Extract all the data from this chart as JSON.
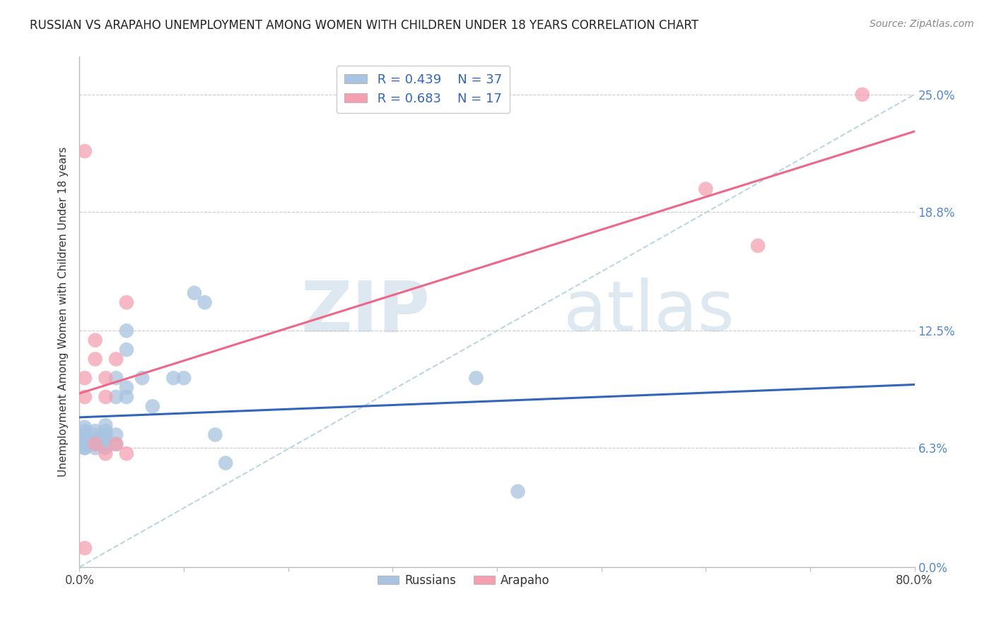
{
  "title": "RUSSIAN VS ARAPAHO UNEMPLOYMENT AMONG WOMEN WITH CHILDREN UNDER 18 YEARS CORRELATION CHART",
  "source": "Source: ZipAtlas.com",
  "ylabel": "Unemployment Among Women with Children Under 18 years",
  "xlim": [
    0.0,
    0.8
  ],
  "ylim": [
    0.0,
    0.27
  ],
  "russian_R": 0.439,
  "russian_N": 37,
  "arapaho_R": 0.683,
  "arapaho_N": 17,
  "russian_color": "#a8c4e0",
  "arapaho_color": "#f4a0b0",
  "russian_line_color": "#3366bb",
  "arapaho_line_color": "#ee6688",
  "diagonal_color": "#aaccdd",
  "background_color": "#ffffff",
  "watermark_zip": "ZIP",
  "watermark_atlas": "atlas",
  "ytick_vals": [
    0.0,
    0.063,
    0.125,
    0.188,
    0.25
  ],
  "ytick_labels": [
    "0.0%",
    "6.3%",
    "12.5%",
    "18.8%",
    "25.0%"
  ],
  "xtick_vals": [
    0.0,
    0.1,
    0.2,
    0.3,
    0.4,
    0.5,
    0.6,
    0.7,
    0.8
  ],
  "xtick_edge_labels": {
    "0": "0.0%",
    "8": "80.0%"
  },
  "russians_x": [
    0.005,
    0.005,
    0.005,
    0.005,
    0.005,
    0.005,
    0.005,
    0.005,
    0.015,
    0.015,
    0.015,
    0.015,
    0.015,
    0.025,
    0.025,
    0.025,
    0.025,
    0.025,
    0.025,
    0.035,
    0.035,
    0.035,
    0.035,
    0.045,
    0.045,
    0.045,
    0.045,
    0.06,
    0.07,
    0.09,
    0.1,
    0.11,
    0.12,
    0.13,
    0.14,
    0.38,
    0.42
  ],
  "russians_y": [
    0.063,
    0.063,
    0.065,
    0.067,
    0.068,
    0.07,
    0.072,
    0.074,
    0.063,
    0.065,
    0.068,
    0.07,
    0.072,
    0.063,
    0.065,
    0.068,
    0.07,
    0.072,
    0.075,
    0.065,
    0.07,
    0.09,
    0.1,
    0.09,
    0.095,
    0.115,
    0.125,
    0.1,
    0.085,
    0.1,
    0.1,
    0.145,
    0.14,
    0.07,
    0.055,
    0.1,
    0.04
  ],
  "arapaho_x": [
    0.005,
    0.005,
    0.005,
    0.005,
    0.015,
    0.015,
    0.015,
    0.025,
    0.025,
    0.025,
    0.035,
    0.035,
    0.045,
    0.045,
    0.6,
    0.65,
    0.75
  ],
  "arapaho_y": [
    0.22,
    0.1,
    0.09,
    0.01,
    0.12,
    0.11,
    0.065,
    0.1,
    0.09,
    0.06,
    0.11,
    0.065,
    0.14,
    0.06,
    0.2,
    0.17,
    0.25
  ]
}
